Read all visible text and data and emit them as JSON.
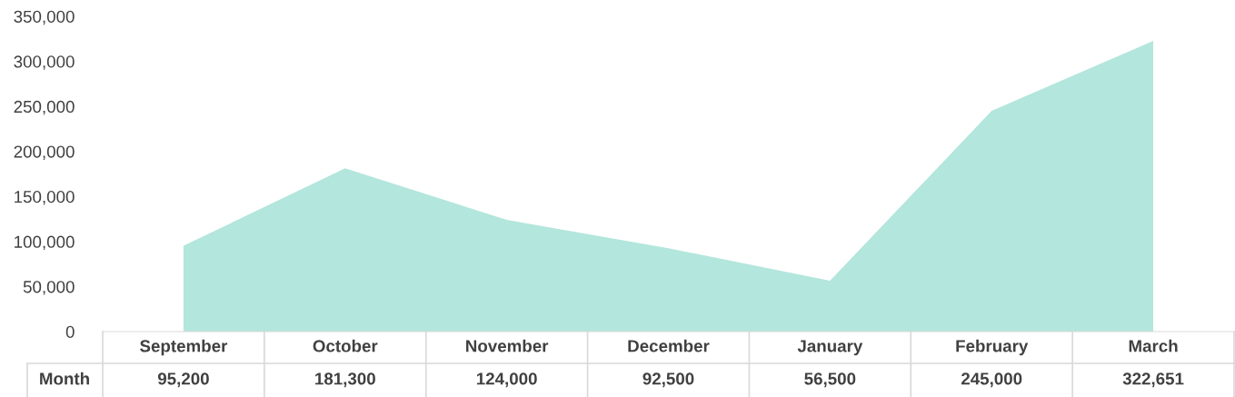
{
  "chart_data": {
    "type": "area",
    "categories": [
      "September",
      "October",
      "November",
      "December",
      "January",
      "February",
      "March"
    ],
    "series": [
      {
        "name": "Month",
        "color": "#b3e6dc",
        "values": [
          95200,
          181300,
          124000,
          92500,
          56500,
          245000,
          322651
        ],
        "value_labels": [
          "95,200",
          "181,300",
          "124,000",
          "92,500",
          "56,500",
          "245,000",
          "322,651"
        ]
      }
    ],
    "ylim": [
      0,
      350000
    ],
    "yticks": [
      {
        "value": 0,
        "label": "0"
      },
      {
        "value": 50000,
        "label": "50,000"
      },
      {
        "value": 100000,
        "label": "100,000"
      },
      {
        "value": 150000,
        "label": "150,000"
      },
      {
        "value": 200000,
        "label": "200,000"
      },
      {
        "value": 250000,
        "label": "250,000"
      },
      {
        "value": 300000,
        "label": "300,000"
      },
      {
        "value": 350000,
        "label": "350,000"
      }
    ],
    "grid": false,
    "legend": false
  }
}
